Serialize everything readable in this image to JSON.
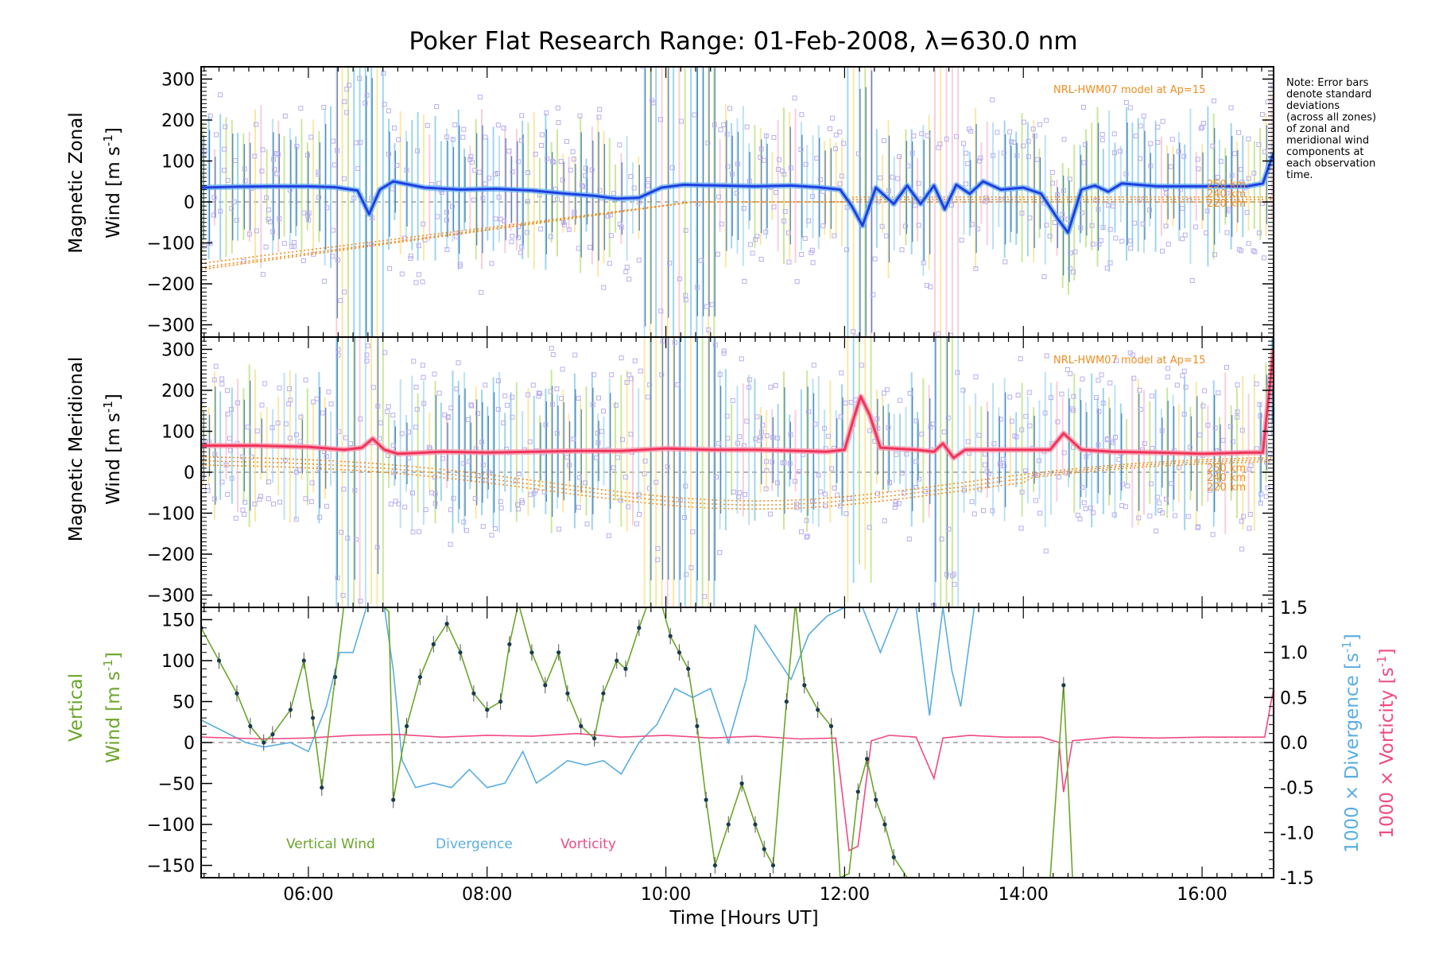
{
  "chart_data": {
    "title": "Poker Flat Research Range: 01-Feb-2008, λ=630.0 nm",
    "xlabel": "Time [Hours UT]",
    "x_ticks": [
      "06:00",
      "08:00",
      "10:00",
      "12:00",
      "14:00",
      "16:00"
    ],
    "xlim_hours": [
      4.8,
      16.8
    ],
    "note": [
      "Note: Error bars",
      "denote standard",
      "deviations",
      "(across all zones)",
      "of zonal and",
      "meridional wind",
      "components at",
      "each observation",
      "time."
    ],
    "colors": {
      "zonal": "#1f3fe0",
      "zonal_glow": "#6fb4f0",
      "meridional": "#f0345a",
      "vertical": "#6aa62a",
      "divergence": "#5aaee0",
      "vorticity": "#f04a84",
      "model": "#f08c20",
      "scatter": "#b8aef0"
    },
    "panels": [
      {
        "type": "line",
        "ylabel_line1": "Magnetic Zonal",
        "ylabel_line2": "Wind [m s",
        "ylabel_sup": "-1",
        "ylabel_close": "]",
        "ylim": [
          -330,
          330
        ],
        "y_ticks": [
          300,
          200,
          100,
          0,
          -100,
          -200,
          -300
        ],
        "model_label": "NRL-HWM07 model at Ap=15",
        "model_altitudes": [
          "250 km",
          "240 km",
          "220 km"
        ],
        "series": [
          {
            "name": "Zonal wind",
            "x": [
              4.8,
              5.2,
              5.6,
              6.0,
              6.3,
              6.55,
              6.68,
              6.8,
              6.95,
              7.3,
              7.7,
              8.1,
              8.5,
              8.9,
              9.2,
              9.45,
              9.7,
              9.95,
              10.2,
              10.6,
              11.0,
              11.4,
              11.7,
              11.95,
              12.08,
              12.2,
              12.35,
              12.55,
              12.7,
              12.85,
              13.0,
              13.12,
              13.25,
              13.4,
              13.55,
              13.75,
              14.0,
              14.2,
              14.38,
              14.5,
              14.65,
              14.8,
              14.95,
              15.1,
              15.5,
              16.0,
              16.5,
              16.68,
              16.8
            ],
            "y": [
              35,
              37,
              38,
              38,
              36,
              28,
              -30,
              30,
              50,
              35,
              30,
              32,
              28,
              20,
              15,
              8,
              10,
              35,
              42,
              40,
              38,
              40,
              36,
              30,
              -10,
              -58,
              35,
              -5,
              40,
              -5,
              40,
              -18,
              42,
              20,
              50,
              30,
              35,
              20,
              -40,
              -75,
              30,
              40,
              25,
              45,
              38,
              38,
              38,
              45,
              120
            ]
          }
        ]
      },
      {
        "type": "line",
        "ylabel_line1": "Magnetic Meridional",
        "ylabel_line2": "Wind [m s",
        "ylabel_sup": "-1",
        "ylabel_close": "]",
        "ylim": [
          -330,
          330
        ],
        "y_ticks": [
          300,
          200,
          100,
          0,
          -100,
          -200,
          -300
        ],
        "model_label": "NRL-HWM07 model at Ap=15",
        "model_altitudes": [
          "250 km",
          "240 km",
          "220 km"
        ],
        "series": [
          {
            "name": "Meridional wind",
            "x": [
              4.8,
              5.4,
              6.0,
              6.4,
              6.6,
              6.72,
              6.85,
              7.0,
              7.5,
              8.0,
              8.5,
              9.0,
              9.5,
              10.0,
              10.5,
              11.0,
              11.5,
              11.8,
              12.0,
              12.1,
              12.18,
              12.28,
              12.4,
              12.8,
              13.0,
              13.1,
              13.22,
              13.35,
              13.6,
              14.0,
              14.3,
              14.45,
              14.65,
              15.0,
              15.5,
              16.0,
              16.5,
              16.68,
              16.8
            ],
            "y": [
              65,
              65,
              62,
              55,
              60,
              82,
              55,
              45,
              50,
              48,
              50,
              52,
              52,
              58,
              55,
              55,
              52,
              50,
              55,
              130,
              185,
              140,
              60,
              55,
              50,
              70,
              35,
              55,
              55,
              55,
              55,
              95,
              55,
              50,
              48,
              45,
              48,
              48,
              300
            ]
          }
        ]
      },
      {
        "type": "line",
        "ylabel_line1": "Vertical",
        "ylabel_line2": "Wind [m s",
        "ylabel_sup": "-1",
        "ylabel_close": "]",
        "ylim": [
          -165,
          165
        ],
        "y_ticks": [
          150,
          100,
          50,
          0,
          -50,
          -100,
          -150
        ],
        "y2_label_div": "1000 × Divergence [s",
        "y2_label_vor": "1000 × Vorticity [s",
        "y2_sup": "-1",
        "y2_close": "]",
        "y2lim": [
          -1.5,
          1.5
        ],
        "y2_ticks": [
          "1.5",
          "1.0",
          "0.5",
          "0.0",
          "-0.5",
          "-1.0",
          "-1.5"
        ],
        "y2_tick_values": [
          1.5,
          1.0,
          0.5,
          0.0,
          -0.5,
          -1.0,
          -1.5
        ],
        "legend": [
          "Vertical Wind",
          "Divergence",
          "Vorticity"
        ],
        "series": [
          {
            "name": "Vertical Wind",
            "x": [
              4.8,
              5.0,
              5.2,
              5.35,
              5.5,
              5.6,
              5.8,
              5.95,
              6.05,
              6.15,
              6.3,
              6.4,
              6.55,
              6.68,
              6.8,
              6.9,
              6.95,
              7.1,
              7.25,
              7.4,
              7.55,
              7.7,
              7.85,
              8.0,
              8.15,
              8.25,
              8.35,
              8.5,
              8.65,
              8.8,
              8.9,
              9.05,
              9.2,
              9.3,
              9.45,
              9.55,
              9.7,
              9.8,
              9.95,
              10.05,
              10.15,
              10.25,
              10.35,
              10.45,
              10.55,
              10.7,
              10.85,
              11.0,
              11.1,
              11.2,
              11.35,
              11.45,
              11.55,
              11.7,
              11.85,
              11.95,
              12.05,
              12.15,
              12.25,
              12.35,
              12.45,
              12.55,
              12.7,
              13.0,
              13.5,
              14.0,
              14.3,
              14.45,
              14.55
            ],
            "y": [
              140,
              100,
              60,
              20,
              0,
              10,
              40,
              100,
              30,
              -55,
              80,
              170,
              170,
              170,
              170,
              160,
              -70,
              20,
              80,
              120,
              145,
              110,
              60,
              40,
              50,
              120,
              170,
              110,
              70,
              110,
              60,
              20,
              5,
              60,
              100,
              90,
              140,
              170,
              170,
              130,
              110,
              90,
              20,
              -70,
              -150,
              -100,
              -50,
              -100,
              -130,
              -150,
              50,
              170,
              70,
              40,
              20,
              -165,
              -160,
              -60,
              -20,
              -70,
              -100,
              -140,
              -165,
              -165,
              -165,
              -165,
              -165,
              70,
              -165
            ]
          },
          {
            "name": "Divergence",
            "x": [
              4.8,
              5.0,
              5.3,
              5.5,
              5.8,
              6.0,
              6.2,
              6.35,
              6.5,
              6.65,
              6.75,
              6.85,
              6.95,
              7.05,
              7.2,
              7.4,
              7.6,
              7.8,
              8.0,
              8.2,
              8.4,
              8.55,
              8.7,
              8.9,
              9.1,
              9.3,
              9.5,
              9.7,
              9.9,
              10.1,
              10.3,
              10.5,
              10.7,
              10.9,
              11.0,
              11.2,
              11.4,
              11.6,
              11.8,
              12.0,
              12.2,
              12.4,
              12.6,
              12.8,
              12.95,
              13.1,
              13.2,
              13.3,
              13.45,
              13.6,
              13.75,
              14.0
            ],
            "y": [
              0.25,
              0.15,
              0.0,
              -0.05,
              0.0,
              -0.1,
              0.4,
              1.0,
              1.0,
              1.5,
              1.5,
              1.5,
              0.8,
              -0.2,
              -0.5,
              -0.45,
              -0.5,
              -0.3,
              -0.5,
              -0.45,
              -0.1,
              -0.45,
              -0.35,
              -0.2,
              -0.25,
              -0.2,
              -0.35,
              0.0,
              0.2,
              0.6,
              0.5,
              0.6,
              0.0,
              0.7,
              1.3,
              1.0,
              0.7,
              1.2,
              1.4,
              1.5,
              1.5,
              1.0,
              1.5,
              1.5,
              0.3,
              1.5,
              0.8,
              0.4,
              1.5,
              1.5,
              1.5,
              1.5
            ]
          },
          {
            "name": "Vorticity",
            "x": [
              4.8,
              5.5,
              6.0,
              6.5,
              7.0,
              7.5,
              8.0,
              8.5,
              9.0,
              9.5,
              10.0,
              10.5,
              11.0,
              11.5,
              11.9,
              12.05,
              12.15,
              12.3,
              12.5,
              12.8,
              13.0,
              13.1,
              13.2,
              13.4,
              13.8,
              14.2,
              14.4,
              14.45,
              14.55,
              15.0,
              15.5,
              16.0,
              16.5,
              16.7,
              16.8
            ],
            "y": [
              0.06,
              0.04,
              0.05,
              0.08,
              0.09,
              0.06,
              0.08,
              0.07,
              0.1,
              0.06,
              0.08,
              0.05,
              0.07,
              0.04,
              0.05,
              -1.2,
              -1.15,
              0.02,
              0.08,
              0.06,
              -0.4,
              0.05,
              0.06,
              0.08,
              0.06,
              0.06,
              0.0,
              -0.55,
              0.02,
              0.06,
              0.05,
              0.06,
              0.06,
              0.06,
              0.6
            ]
          }
        ]
      }
    ]
  }
}
